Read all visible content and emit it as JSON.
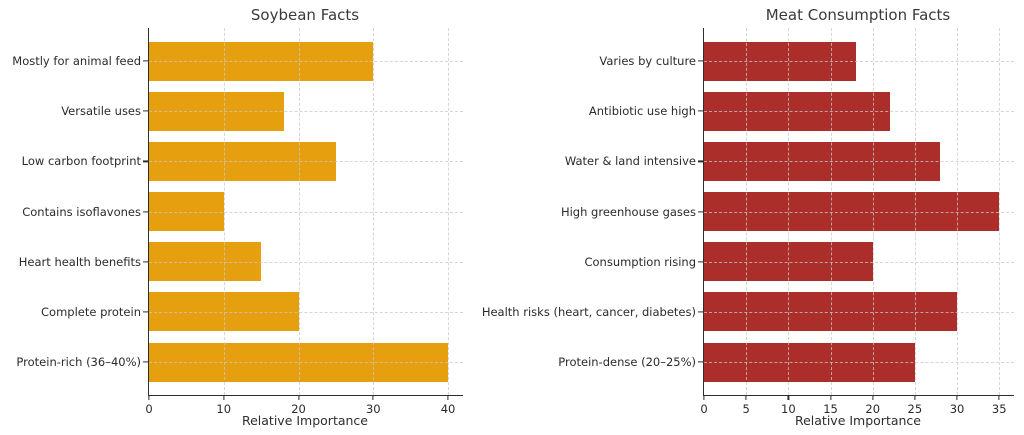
{
  "chart_data": [
    {
      "type": "bar",
      "orientation": "horizontal",
      "title": "Soybean Facts",
      "xlabel": "Relative Importance",
      "categories": [
        "Mostly for animal feed",
        "Versatile uses",
        "Low carbon footprint",
        "Contains isoflavones",
        "Heart health benefits",
        "Complete protein",
        "Protein-rich (36–40%)"
      ],
      "values": [
        30,
        18,
        25,
        10,
        15,
        20,
        40
      ],
      "xticks": [
        0,
        10,
        20,
        30,
        40
      ],
      "xlim": [
        0,
        42
      ],
      "bar_color": "#E6A00F",
      "grid": "dashed",
      "legend": "none"
    },
    {
      "type": "bar",
      "orientation": "horizontal",
      "title": "Meat Consumption Facts",
      "xlabel": "Relative Importance",
      "categories": [
        "Varies by culture",
        "Antibiotic use high",
        "Water & land intensive",
        "High greenhouse gases",
        "Consumption rising",
        "Health risks (heart, cancer, diabetes)",
        "Protein-dense (20–25%)"
      ],
      "values": [
        18,
        22,
        28,
        35,
        20,
        30,
        25
      ],
      "xticks": [
        0,
        5,
        10,
        15,
        20,
        25,
        30,
        35
      ],
      "xlim": [
        0,
        36.75
      ],
      "bar_color": "#AC2E2A",
      "grid": "dashed",
      "legend": "none"
    }
  ],
  "style": {
    "background_color": "#ffffff",
    "axis_color": "#2e2e2e",
    "grid_color": "#c9c9c9",
    "text_color": "#2b2b2b"
  }
}
